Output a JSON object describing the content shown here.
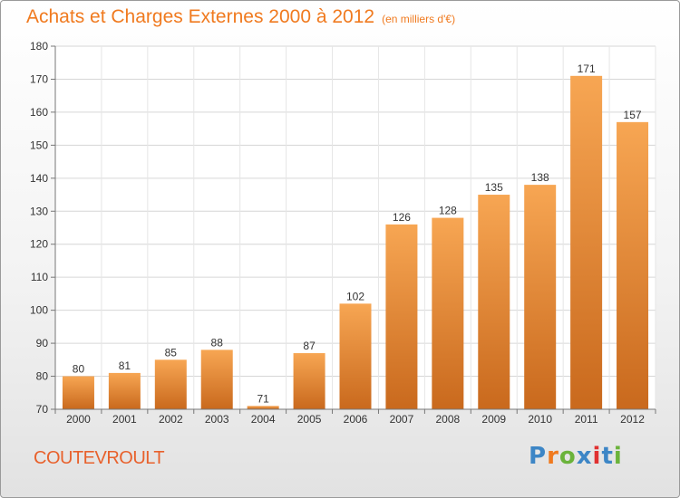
{
  "title": "Achats et Charges Externes 2000 à 2012",
  "unit": "(en milliers d'€)",
  "town": "COUTEVROULT",
  "logo": {
    "text": "Proxiti",
    "colors": [
      "#3d86c6",
      "#f07a1f",
      "#6bb33b",
      "#3d86c6",
      "#e03131",
      "#3d86c6",
      "#6bb33b"
    ]
  },
  "colors": {
    "bar_top": "#f7a653",
    "bar_bottom": "#c9691d",
    "title": "#f07a1f",
    "town": "#e8612c"
  },
  "chart_data": {
    "type": "bar",
    "categories": [
      "2000",
      "2001",
      "2002",
      "2003",
      "2004",
      "2005",
      "2006",
      "2007",
      "2008",
      "2009",
      "2010",
      "2011",
      "2012"
    ],
    "values": [
      80,
      81,
      85,
      88,
      71,
      87,
      102,
      126,
      128,
      135,
      138,
      171,
      157
    ],
    "ylim": [
      70,
      180
    ],
    "yticks": [
      70,
      80,
      90,
      100,
      110,
      120,
      130,
      140,
      150,
      160,
      170,
      180
    ],
    "grid": true,
    "data_labels": true
  }
}
